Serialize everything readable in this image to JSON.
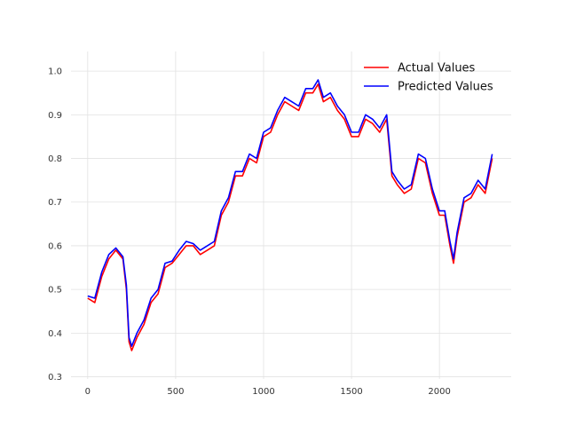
{
  "chart_data": {
    "type": "line",
    "title": "",
    "xlabel": "",
    "ylabel": "",
    "xlim": [
      -95,
      2408
    ],
    "ylim": [
      0.295,
      1.045
    ],
    "grid": true,
    "legend_position": "top-right",
    "x_ticks": [
      0,
      500,
      1000,
      1500,
      2000
    ],
    "y_ticks": [
      0.3,
      0.4,
      0.5,
      0.6,
      0.7,
      0.8,
      0.9,
      1.0
    ],
    "x_tick_labels": [
      "0",
      "500",
      "1000",
      "1500",
      "2000"
    ],
    "y_tick_labels": [
      "0.3",
      "0.4",
      "0.5",
      "0.6",
      "0.7",
      "0.8",
      "0.9",
      "1.0"
    ],
    "series": [
      {
        "name": "Actual Values",
        "color": "#ff0000",
        "x": [
          0,
          40,
          80,
          120,
          160,
          200,
          220,
          235,
          250,
          280,
          320,
          360,
          400,
          440,
          480,
          520,
          560,
          600,
          640,
          680,
          720,
          760,
          800,
          840,
          880,
          920,
          960,
          1000,
          1040,
          1080,
          1120,
          1160,
          1200,
          1240,
          1280,
          1310,
          1340,
          1380,
          1420,
          1460,
          1500,
          1540,
          1580,
          1620,
          1660,
          1700,
          1730,
          1760,
          1800,
          1840,
          1880,
          1920,
          1960,
          2000,
          2030,
          2060,
          2080,
          2100,
          2140,
          2180,
          2220,
          2260,
          2300
        ],
        "values": [
          0.48,
          0.47,
          0.53,
          0.57,
          0.59,
          0.57,
          0.5,
          0.38,
          0.36,
          0.39,
          0.42,
          0.47,
          0.49,
          0.55,
          0.56,
          0.58,
          0.6,
          0.6,
          0.58,
          0.59,
          0.6,
          0.67,
          0.7,
          0.76,
          0.76,
          0.8,
          0.79,
          0.85,
          0.86,
          0.9,
          0.93,
          0.92,
          0.91,
          0.95,
          0.95,
          0.97,
          0.93,
          0.94,
          0.91,
          0.89,
          0.85,
          0.85,
          0.89,
          0.88,
          0.86,
          0.89,
          0.76,
          0.74,
          0.72,
          0.73,
          0.8,
          0.79,
          0.72,
          0.67,
          0.67,
          0.6,
          0.56,
          0.62,
          0.7,
          0.71,
          0.74,
          0.72,
          0.8
        ]
      },
      {
        "name": "Predicted Values",
        "color": "#0000ff",
        "x": [
          0,
          40,
          80,
          120,
          160,
          200,
          220,
          235,
          250,
          280,
          320,
          360,
          400,
          440,
          480,
          520,
          560,
          600,
          640,
          680,
          720,
          760,
          800,
          840,
          880,
          920,
          960,
          1000,
          1040,
          1080,
          1120,
          1160,
          1200,
          1240,
          1280,
          1310,
          1340,
          1380,
          1420,
          1460,
          1500,
          1540,
          1580,
          1620,
          1660,
          1700,
          1730,
          1760,
          1800,
          1840,
          1880,
          1920,
          1960,
          2000,
          2030,
          2060,
          2080,
          2100,
          2140,
          2180,
          2220,
          2260,
          2300
        ],
        "values": [
          0.485,
          0.48,
          0.54,
          0.58,
          0.595,
          0.575,
          0.51,
          0.39,
          0.37,
          0.4,
          0.43,
          0.48,
          0.5,
          0.56,
          0.565,
          0.59,
          0.61,
          0.605,
          0.59,
          0.6,
          0.61,
          0.68,
          0.71,
          0.77,
          0.77,
          0.81,
          0.8,
          0.86,
          0.87,
          0.91,
          0.94,
          0.93,
          0.92,
          0.96,
          0.96,
          0.98,
          0.94,
          0.95,
          0.92,
          0.9,
          0.86,
          0.86,
          0.9,
          0.89,
          0.87,
          0.9,
          0.77,
          0.75,
          0.73,
          0.74,
          0.81,
          0.8,
          0.73,
          0.68,
          0.68,
          0.61,
          0.57,
          0.63,
          0.71,
          0.72,
          0.75,
          0.73,
          0.81
        ]
      }
    ]
  }
}
